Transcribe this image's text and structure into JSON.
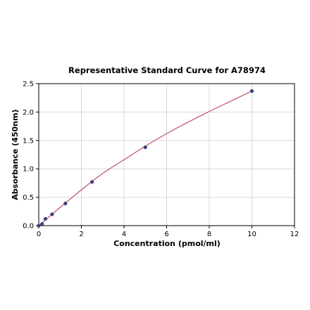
{
  "chart_data": {
    "type": "scatter",
    "title": "Representative Standard Curve for A78974",
    "xlabel": "Concentration (pmol/ml)",
    "ylabel": "Absorbance (450nm)",
    "xlim": [
      0,
      12
    ],
    "ylim": [
      0,
      2.5
    ],
    "x_ticks": [
      "0",
      "2",
      "4",
      "6",
      "8",
      "10",
      "12"
    ],
    "y_ticks": [
      "0.0",
      "0.5",
      "1.0",
      "1.5",
      "2.0",
      "2.5"
    ],
    "grid": true,
    "series": [
      {
        "x": [
          0,
          0.156,
          0.312,
          0.625,
          1.25,
          2.5,
          5,
          10
        ],
        "y": [
          0.0,
          0.03,
          0.12,
          0.2,
          0.39,
          0.77,
          1.38,
          2.37
        ]
      }
    ],
    "fit_curve": {
      "type": "smooth",
      "points_x": [
        0,
        0.5,
        1,
        2,
        3,
        4,
        5,
        6,
        7,
        8,
        9,
        10
      ],
      "points_y": [
        0.0,
        0.16,
        0.32,
        0.63,
        0.92,
        1.16,
        1.4,
        1.62,
        1.82,
        2.01,
        2.19,
        2.37
      ]
    },
    "colors": {
      "point": "#3f3f7a",
      "curve": "#c0506d",
      "grid": "#d8d8d8"
    }
  }
}
